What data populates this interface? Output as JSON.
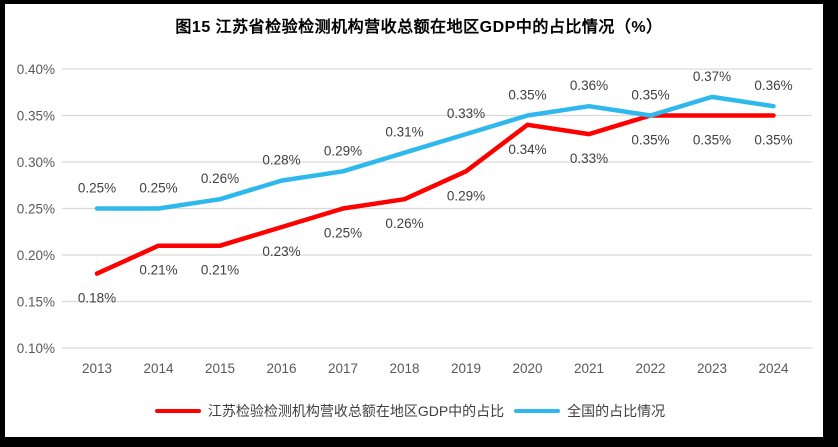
{
  "chart_data": {
    "type": "line",
    "title": "图15  江苏省检验检测机构营收总额在地区GDP中的占比情况（%）",
    "categories": [
      "2013",
      "2014",
      "2015",
      "2016",
      "2017",
      "2018",
      "2019",
      "2020",
      "2021",
      "2022",
      "2023",
      "2024"
    ],
    "series": [
      {
        "id": "jiangsu",
        "name": "江苏检验检测机构营收总额在地区GDP中的占比",
        "color": "#FF0000",
        "values": [
          0.18,
          0.21,
          0.21,
          0.23,
          0.25,
          0.26,
          0.29,
          0.34,
          0.33,
          0.35,
          0.35,
          0.35
        ],
        "labels": [
          "0.18%",
          "0.21%",
          "0.21%",
          "0.23%",
          "0.25%",
          "0.26%",
          "0.29%",
          "0.34%",
          "0.33%",
          "0.35%",
          "0.35%",
          "0.35%"
        ],
        "label_position": "below"
      },
      {
        "id": "national",
        "name": "全国的占比情况",
        "color": "#2FB8EC",
        "values": [
          0.25,
          0.25,
          0.26,
          0.28,
          0.29,
          0.31,
          0.33,
          0.35,
          0.36,
          0.35,
          0.37,
          0.36
        ],
        "labels": [
          "0.25%",
          "0.25%",
          "0.26%",
          "0.28%",
          "0.29%",
          "0.31%",
          "0.33%",
          "0.35%",
          "0.36%",
          "0.35%",
          "0.37%",
          "0.36%"
        ],
        "label_position": "above"
      }
    ],
    "y_axis": {
      "ticks": [
        "0.40%",
        "0.35%",
        "0.30%",
        "0.25%",
        "0.20%",
        "0.15%",
        "0.10%"
      ],
      "max": 0.4,
      "min": 0.1,
      "step": 0.05
    },
    "grid": true,
    "legend_position": "bottom",
    "colors": {
      "gridline": "#D9D9D9",
      "axis_label": "#595959",
      "data_label": "#404040",
      "frame": "#000000",
      "background": "#FFFFFF"
    }
  }
}
